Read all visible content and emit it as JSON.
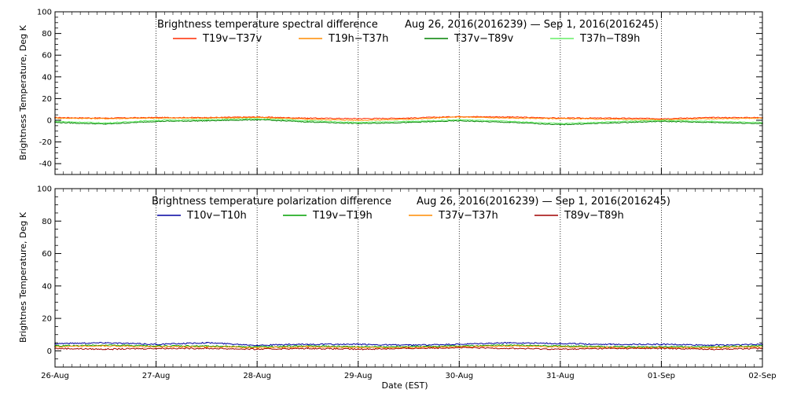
{
  "chart_data": [
    {
      "type": "line",
      "title": "Brightness temperature spectral difference",
      "date_range": "Aug 26, 2016(2016239) — Sep  1, 2016(2016245)",
      "ylabel": "Brightness Temperature, Deg K",
      "xlabel": "",
      "ylim": [
        -50,
        100
      ],
      "yticks": [
        -40,
        -20,
        0,
        20,
        40,
        60,
        80,
        100
      ],
      "xlim": [
        0,
        7
      ],
      "xtick_labels": [],
      "grid": "vertical dotted at each day",
      "legend_placement": "top",
      "x_days": [
        0.0,
        0.5,
        1.0,
        1.5,
        2.0,
        2.5,
        3.0,
        3.5,
        4.0,
        4.5,
        5.0,
        5.5,
        6.0,
        6.5,
        7.0
      ],
      "series": [
        {
          "name": "T19v−T37v",
          "color": "#ff2a00",
          "values": [
            2.5,
            2.0,
            2.5,
            2.5,
            3.0,
            2.0,
            1.5,
            2.0,
            3.5,
            3.0,
            2.0,
            2.0,
            1.5,
            2.5,
            2.5
          ]
        },
        {
          "name": "T19h−T37h",
          "color": "#ff8c00",
          "values": [
            2.0,
            1.5,
            2.0,
            2.0,
            2.5,
            1.0,
            0.0,
            1.0,
            3.0,
            2.0,
            1.5,
            1.0,
            0.5,
            1.5,
            2.0
          ]
        },
        {
          "name": "T37v−T89v",
          "color": "#008000",
          "values": [
            -2.0,
            -3.5,
            -1.0,
            -0.5,
            0.5,
            -1.5,
            -3.0,
            -2.0,
            -0.5,
            -2.0,
            -4.0,
            -2.5,
            -1.0,
            -2.0,
            -3.0
          ]
        },
        {
          "name": "T37h−T89h",
          "color": "#66ee66",
          "values": [
            -1.0,
            -2.5,
            0.0,
            0.5,
            1.5,
            -0.5,
            -2.0,
            -1.0,
            0.5,
            -1.0,
            -3.0,
            -1.5,
            0.0,
            -1.0,
            -2.0
          ]
        }
      ]
    },
    {
      "type": "line",
      "title": "Brightness temperature polarization difference",
      "date_range": "Aug 26, 2016(2016239) — Sep  1, 2016(2016245)",
      "ylabel": "Brightnes Temperature, Deg K",
      "xlabel": "Date (EST)",
      "ylim": [
        -10,
        100
      ],
      "yticks": [
        0,
        20,
        40,
        60,
        80,
        100
      ],
      "xlim": [
        0,
        7
      ],
      "xtick_labels": [
        "26-Aug",
        "27-Aug",
        "28-Aug",
        "29-Aug",
        "30-Aug",
        "31-Aug",
        "01-Sep",
        "02-Sep"
      ],
      "grid": "vertical dotted at each day",
      "legend_placement": "top",
      "x_days": [
        0.0,
        0.5,
        1.0,
        1.5,
        2.0,
        2.5,
        3.0,
        3.5,
        4.0,
        4.5,
        5.0,
        5.5,
        6.0,
        6.5,
        7.0
      ],
      "series": [
        {
          "name": "T10v−T10h",
          "color": "#0000a0",
          "values": [
            4.5,
            5.0,
            4.0,
            5.0,
            3.5,
            4.0,
            4.0,
            3.5,
            4.0,
            5.0,
            4.5,
            4.0,
            4.0,
            3.5,
            4.0
          ]
        },
        {
          "name": "T19v−T19h",
          "color": "#00a000",
          "values": [
            3.0,
            3.5,
            3.0,
            3.0,
            2.5,
            3.0,
            2.5,
            2.5,
            3.0,
            3.5,
            3.0,
            2.5,
            2.5,
            2.5,
            3.0
          ]
        },
        {
          "name": "T37v−T37h",
          "color": "#ff8c00",
          "values": [
            2.5,
            3.0,
            2.5,
            2.5,
            2.0,
            2.5,
            2.0,
            2.0,
            2.5,
            3.0,
            2.5,
            2.0,
            2.0,
            2.0,
            2.5
          ]
        },
        {
          "name": "T89v−T89h",
          "color": "#a00000",
          "values": [
            1.5,
            1.0,
            1.5,
            1.5,
            1.0,
            1.5,
            1.0,
            1.5,
            2.0,
            1.5,
            1.0,
            1.5,
            1.5,
            1.0,
            1.5
          ]
        }
      ]
    }
  ]
}
